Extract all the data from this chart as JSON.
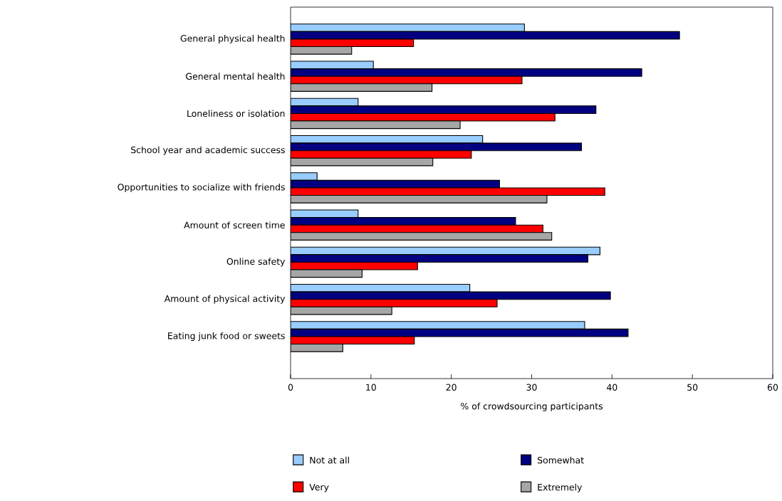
{
  "chart_data": {
    "type": "bar",
    "orientation": "horizontal",
    "xlabel": "% of crowdsourcing participants",
    "categories": [
      "General physical health",
      "General mental health",
      "Loneliness or isolation",
      "School year and academic success",
      "Opportunities to socialize with friends",
      "Amount of screen time",
      "Online safety",
      "Amount of physical activity",
      "Eating junk food or sweets"
    ],
    "series": [
      {
        "name": "Not at all",
        "color": "#99ccff",
        "values": [
          29.1,
          10.3,
          8.4,
          23.9,
          3.3,
          8.4,
          38.5,
          22.3,
          36.6
        ]
      },
      {
        "name": "Somewhat",
        "color": "#000080",
        "values": [
          48.4,
          43.7,
          38.0,
          36.2,
          26.0,
          28.0,
          37.0,
          39.8,
          42.0
        ]
      },
      {
        "name": "Very",
        "color": "#ff0000",
        "values": [
          15.3,
          28.8,
          32.9,
          22.5,
          39.1,
          31.4,
          15.8,
          25.7,
          15.4
        ]
      },
      {
        "name": "Extremely",
        "color": "#a6a6a6",
        "values": [
          7.6,
          17.6,
          21.1,
          17.7,
          31.9,
          32.5,
          8.9,
          12.6,
          6.5
        ]
      }
    ],
    "xlim": [
      0,
      60
    ],
    "xticks": [
      0,
      10,
      20,
      30,
      40,
      50,
      60
    ],
    "grid": false,
    "legend": "bottom"
  }
}
